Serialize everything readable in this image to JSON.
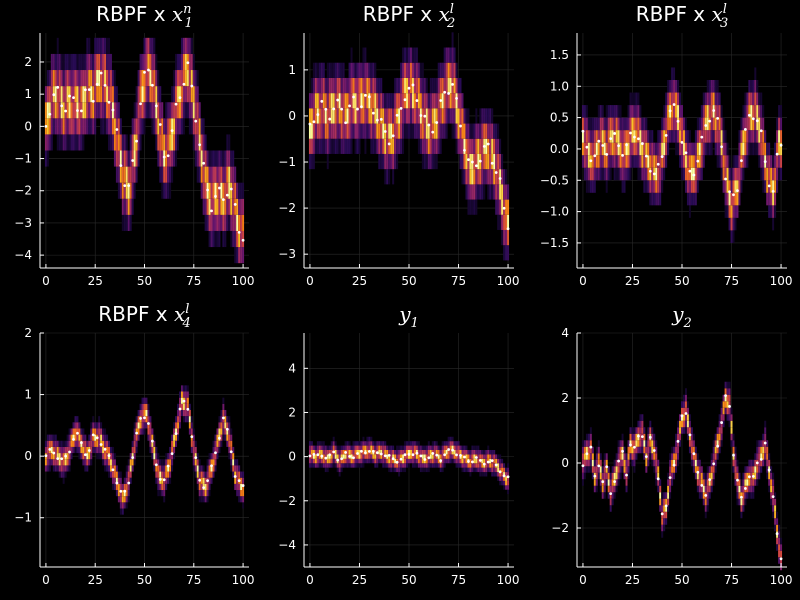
{
  "chart_data": [
    {
      "type": "heatmap",
      "title": "RBPF x",
      "title_var": "",
      "title_sub": "1",
      "title_sup": "n",
      "xlim": [
        -3,
        103
      ],
      "ylim": [
        -4.4,
        2.9
      ],
      "xticks": [
        0,
        25,
        50,
        75,
        100
      ],
      "yticks": [
        -4,
        -3,
        -2,
        -1,
        0,
        1,
        2
      ],
      "grid": true,
      "cell_height": 0.5,
      "mean_points": [
        [
          0,
          0.0
        ],
        [
          3,
          0.9
        ],
        [
          6,
          1.0
        ],
        [
          9,
          0.6
        ],
        [
          12,
          0.8
        ],
        [
          15,
          0.7
        ],
        [
          18,
          0.6
        ],
        [
          21,
          1.1
        ],
        [
          24,
          1.0
        ],
        [
          27,
          1.5
        ],
        [
          30,
          1.3
        ],
        [
          33,
          0.8
        ],
        [
          36,
          -0.3
        ],
        [
          39,
          -1.5
        ],
        [
          42,
          -2.0
        ],
        [
          45,
          -0.8
        ],
        [
          48,
          0.8
        ],
        [
          51,
          1.8
        ],
        [
          54,
          1.5
        ],
        [
          57,
          0.2
        ],
        [
          60,
          -0.9
        ],
        [
          63,
          -0.6
        ],
        [
          66,
          0.5
        ],
        [
          69,
          1.3
        ],
        [
          72,
          1.8
        ],
        [
          75,
          0.8
        ],
        [
          78,
          -0.5
        ],
        [
          81,
          -1.8
        ],
        [
          84,
          -2.4
        ],
        [
          87,
          -2.1
        ],
        [
          90,
          -2.2
        ],
        [
          93,
          -1.8
        ],
        [
          96,
          -2.6
        ],
        [
          99,
          -3.4
        ]
      ]
    },
    {
      "type": "heatmap",
      "title": "RBPF x",
      "title_var": "",
      "title_sub": "2",
      "title_sup": "l",
      "xlim": [
        -3,
        103
      ],
      "ylim": [
        -3.3,
        1.8
      ],
      "xticks": [
        0,
        25,
        50,
        75,
        100
      ],
      "yticks": [
        -3,
        -2,
        -1,
        0,
        1
      ],
      "grid": true,
      "cell_height": 0.33,
      "mean_points": [
        [
          0,
          -0.3
        ],
        [
          3,
          0.1
        ],
        [
          6,
          0.2
        ],
        [
          9,
          0.0
        ],
        [
          12,
          0.2
        ],
        [
          15,
          0.2
        ],
        [
          18,
          0.0
        ],
        [
          21,
          0.3
        ],
        [
          24,
          0.2
        ],
        [
          27,
          0.4
        ],
        [
          30,
          0.3
        ],
        [
          33,
          0.1
        ],
        [
          36,
          -0.2
        ],
        [
          39,
          -0.5
        ],
        [
          42,
          -0.4
        ],
        [
          45,
          0.0
        ],
        [
          48,
          0.5
        ],
        [
          51,
          0.6
        ],
        [
          54,
          0.4
        ],
        [
          57,
          0.0
        ],
        [
          60,
          -0.3
        ],
        [
          63,
          -0.2
        ],
        [
          66,
          0.2
        ],
        [
          69,
          0.6
        ],
        [
          72,
          0.7
        ],
        [
          75,
          0.0
        ],
        [
          78,
          -0.6
        ],
        [
          81,
          -1.2
        ],
        [
          84,
          -1.0
        ],
        [
          87,
          -0.8
        ],
        [
          90,
          -0.7
        ],
        [
          93,
          -1.0
        ],
        [
          96,
          -1.5
        ],
        [
          99,
          -2.3
        ]
      ]
    },
    {
      "type": "heatmap",
      "title": "RBPF x",
      "title_var": "",
      "title_sub": "3",
      "title_sup": "l",
      "xlim": [
        -3,
        103
      ],
      "ylim": [
        -1.9,
        1.85
      ],
      "xticks": [
        0,
        25,
        50,
        75,
        100
      ],
      "yticks": [
        -1.5,
        -1.0,
        -0.5,
        0.0,
        0.5,
        1.0,
        1.5
      ],
      "grid": true,
      "cell_height": 0.2,
      "mean_points": [
        [
          0,
          0.2
        ],
        [
          3,
          -0.1
        ],
        [
          6,
          -0.1
        ],
        [
          9,
          0.1
        ],
        [
          12,
          0.0
        ],
        [
          15,
          0.2
        ],
        [
          18,
          0.1
        ],
        [
          21,
          -0.1
        ],
        [
          24,
          0.2
        ],
        [
          27,
          0.3
        ],
        [
          30,
          0.0
        ],
        [
          33,
          -0.2
        ],
        [
          36,
          -0.4
        ],
        [
          39,
          -0.3
        ],
        [
          42,
          0.3
        ],
        [
          45,
          0.7
        ],
        [
          48,
          0.5
        ],
        [
          51,
          0.0
        ],
        [
          54,
          -0.4
        ],
        [
          57,
          -0.3
        ],
        [
          60,
          0.1
        ],
        [
          63,
          0.5
        ],
        [
          66,
          0.6
        ],
        [
          69,
          0.3
        ],
        [
          72,
          -0.4
        ],
        [
          75,
          -0.9
        ],
        [
          78,
          -0.6
        ],
        [
          81,
          0.1
        ],
        [
          84,
          0.5
        ],
        [
          87,
          0.6
        ],
        [
          90,
          0.2
        ],
        [
          93,
          -0.4
        ],
        [
          96,
          -0.7
        ],
        [
          99,
          0.1
        ]
      ]
    },
    {
      "type": "heatmap",
      "title": "RBPF x",
      "title_var": "",
      "title_sub": "4",
      "title_sup": "l",
      "xlim": [
        -3,
        103
      ],
      "ylim": [
        -1.8,
        2.0
      ],
      "xticks": [
        0,
        25,
        50,
        75,
        100
      ],
      "yticks": [
        -1,
        0,
        1,
        2
      ],
      "grid": true,
      "cell_height": 0.1,
      "mean_points": [
        [
          0,
          0.0
        ],
        [
          3,
          0.1
        ],
        [
          6,
          0.0
        ],
        [
          9,
          -0.1
        ],
        [
          12,
          0.1
        ],
        [
          15,
          0.4
        ],
        [
          18,
          0.2
        ],
        [
          21,
          0.0
        ],
        [
          24,
          0.3
        ],
        [
          27,
          0.3
        ],
        [
          30,
          0.1
        ],
        [
          33,
          -0.1
        ],
        [
          36,
          -0.4
        ],
        [
          39,
          -0.7
        ],
        [
          42,
          -0.4
        ],
        [
          45,
          0.2
        ],
        [
          48,
          0.6
        ],
        [
          51,
          0.7
        ],
        [
          54,
          0.2
        ],
        [
          57,
          -0.3
        ],
        [
          60,
          -0.4
        ],
        [
          63,
          -0.1
        ],
        [
          66,
          0.4
        ],
        [
          69,
          0.9
        ],
        [
          72,
          0.8
        ],
        [
          75,
          0.1
        ],
        [
          78,
          -0.4
        ],
        [
          81,
          -0.5
        ],
        [
          84,
          -0.2
        ],
        [
          87,
          0.2
        ],
        [
          90,
          0.6
        ],
        [
          93,
          0.3
        ],
        [
          96,
          -0.3
        ],
        [
          99,
          -0.5
        ]
      ]
    },
    {
      "type": "heatmap",
      "title": "",
      "title_var": "y",
      "title_sub": "1",
      "title_sup": "",
      "xlim": [
        -3,
        103
      ],
      "ylim": [
        -5,
        5.6
      ],
      "xticks": [
        0,
        25,
        50,
        75,
        100
      ],
      "yticks": [
        -4,
        -2,
        0,
        2,
        4
      ],
      "grid": true,
      "cell_height": 0.2,
      "mean_points": [
        [
          0,
          0.1
        ],
        [
          3,
          0.0
        ],
        [
          6,
          0.1
        ],
        [
          9,
          -0.1
        ],
        [
          12,
          0.2
        ],
        [
          15,
          -0.2
        ],
        [
          18,
          0.1
        ],
        [
          21,
          0.0
        ],
        [
          24,
          0.1
        ],
        [
          27,
          0.2
        ],
        [
          30,
          0.3
        ],
        [
          33,
          0.1
        ],
        [
          36,
          0.2
        ],
        [
          39,
          0.0
        ],
        [
          42,
          -0.1
        ],
        [
          45,
          -0.2
        ],
        [
          48,
          0.0
        ],
        [
          51,
          0.2
        ],
        [
          54,
          0.1
        ],
        [
          57,
          -0.1
        ],
        [
          60,
          0.0
        ],
        [
          63,
          0.1
        ],
        [
          66,
          -0.1
        ],
        [
          69,
          0.2
        ],
        [
          72,
          0.3
        ],
        [
          75,
          0.1
        ],
        [
          78,
          -0.1
        ],
        [
          81,
          -0.2
        ],
        [
          84,
          -0.1
        ],
        [
          87,
          -0.3
        ],
        [
          90,
          -0.2
        ],
        [
          93,
          -0.3
        ],
        [
          96,
          -0.6
        ],
        [
          99,
          -1.0
        ]
      ]
    },
    {
      "type": "heatmap",
      "title": "",
      "title_var": "y",
      "title_sub": "2",
      "title_sup": "",
      "xlim": [
        -3,
        103
      ],
      "ylim": [
        -3.2,
        4.0
      ],
      "xticks": [
        0,
        25,
        50,
        75,
        100
      ],
      "yticks": [
        -2,
        0,
        2,
        4
      ],
      "grid": true,
      "cell_height": 0.2,
      "mean_points": [
        [
          0,
          0.0
        ],
        [
          2,
          0.3
        ],
        [
          4,
          0.4
        ],
        [
          6,
          -0.4
        ],
        [
          8,
          0.0
        ],
        [
          10,
          -0.6
        ],
        [
          12,
          -0.2
        ],
        [
          14,
          -0.9
        ],
        [
          16,
          -0.5
        ],
        [
          18,
          0.0
        ],
        [
          20,
          0.3
        ],
        [
          22,
          -0.3
        ],
        [
          24,
          0.6
        ],
        [
          26,
          0.4
        ],
        [
          28,
          0.8
        ],
        [
          30,
          0.9
        ],
        [
          32,
          0.2
        ],
        [
          34,
          0.7
        ],
        [
          36,
          0.4
        ],
        [
          38,
          -0.4
        ],
        [
          40,
          -1.6
        ],
        [
          42,
          -1.4
        ],
        [
          44,
          -0.4
        ],
        [
          46,
          0.0
        ],
        [
          48,
          0.6
        ],
        [
          50,
          1.4
        ],
        [
          52,
          1.6
        ],
        [
          54,
          0.9
        ],
        [
          56,
          0.2
        ],
        [
          58,
          -0.3
        ],
        [
          60,
          -0.6
        ],
        [
          62,
          -1.0
        ],
        [
          64,
          -0.6
        ],
        [
          66,
          0.0
        ],
        [
          68,
          0.6
        ],
        [
          70,
          1.2
        ],
        [
          72,
          2.0
        ],
        [
          74,
          1.8
        ],
        [
          76,
          0.3
        ],
        [
          78,
          -0.6
        ],
        [
          80,
          -1.1
        ],
        [
          82,
          -0.7
        ],
        [
          84,
          -0.4
        ],
        [
          86,
          -0.5
        ],
        [
          88,
          0.0
        ],
        [
          90,
          0.2
        ],
        [
          92,
          0.6
        ],
        [
          94,
          -0.3
        ],
        [
          96,
          -1.0
        ],
        [
          98,
          -2.1
        ],
        [
          100,
          -3.0
        ]
      ]
    }
  ]
}
